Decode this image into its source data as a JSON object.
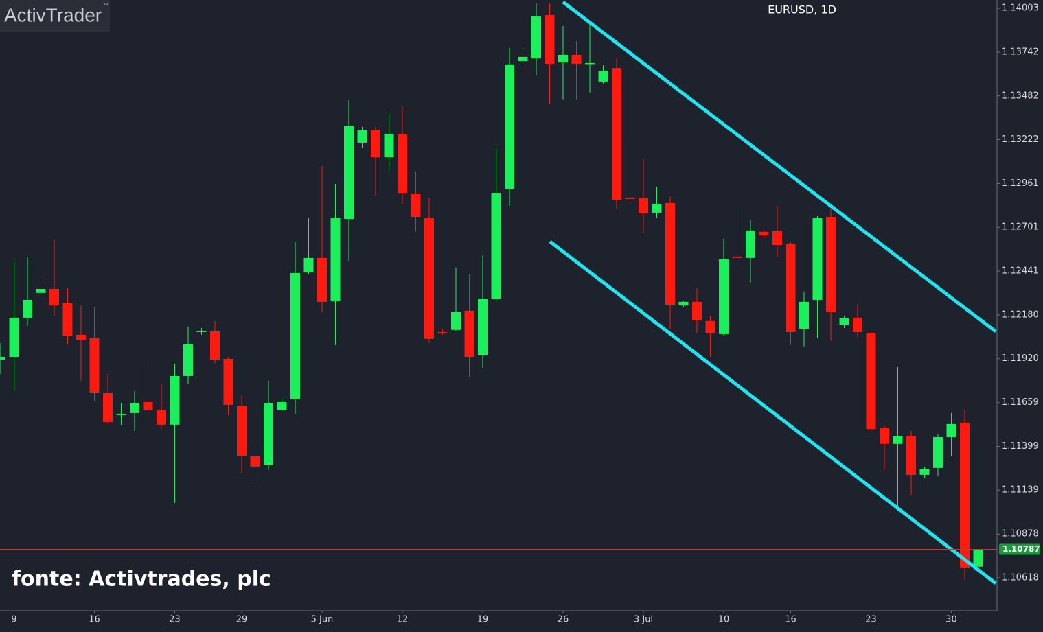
{
  "chart_data": {
    "type": "candlestick",
    "title": "EURUSD, 1D",
    "logo": "ActivTrader",
    "trademark": "™",
    "source": "fonte: Activtrades, plc",
    "last_price": 1.10787,
    "up_color": "#19f05a",
    "down_color": "#ff1a10",
    "grid": false,
    "categories": [
      null,
      "9",
      null,
      null,
      null,
      null,
      null,
      "16",
      null,
      null,
      null,
      null,
      null,
      "23",
      null,
      null,
      null,
      null,
      "29",
      null,
      null,
      null,
      null,
      null,
      "5 Jun",
      null,
      null,
      null,
      null,
      null,
      "12",
      null,
      null,
      null,
      null,
      null,
      "19",
      null,
      null,
      null,
      null,
      null,
      "26",
      null,
      null,
      null,
      null,
      null,
      "3 Jul",
      null,
      null,
      null,
      null,
      null,
      "10",
      null,
      null,
      null,
      null,
      "16",
      null,
      null,
      null,
      null,
      null,
      "23",
      null,
      null,
      null,
      null,
      null,
      "30",
      null,
      null
    ],
    "open": [
      1.11915,
      1.11931,
      1.12164,
      1.12311,
      1.12335,
      1.1225,
      1.12062,
      1.12042,
      1.11715,
      1.11585,
      1.11597,
      1.11662,
      1.11613,
      1.11528,
      1.11817,
      1.12078,
      1.12082,
      1.11919,
      1.11638,
      1.1134,
      1.11287,
      1.11617,
      1.11679,
      1.12433,
      1.12519,
      1.12262,
      1.12751,
      1.13204,
      1.13281,
      1.13118,
      1.13253,
      1.12902,
      1.12755,
      1.12078,
      1.12091,
      1.12205,
      1.1194,
      1.12274,
      1.12927,
      1.13689,
      1.13705,
      1.13962,
      1.13681,
      1.13726,
      1.13673,
      1.13567,
      1.13648,
      1.12878,
      1.12874,
      1.12788,
      1.12845,
      1.12237,
      1.12258,
      1.12144,
      1.12066,
      1.12527,
      1.12519,
      1.12674,
      1.12678,
      1.126,
      1.12095,
      1.1227,
      1.12763,
      1.12119,
      1.12164,
      1.12074,
      1.11507,
      1.11414,
      1.1146,
      1.1123,
      1.11271,
      1.11454,
      1.1154,
      1.10684
    ],
    "high": [
      1.12013,
      1.12502,
      1.12523,
      1.12392,
      1.12625,
      1.12339,
      1.12237,
      1.12225,
      1.1183,
      1.11654,
      1.11728,
      1.1187,
      1.11768,
      1.11891,
      1.12111,
      1.12103,
      1.12144,
      1.11931,
      1.11707,
      1.11401,
      1.11789,
      1.11687,
      1.12617,
      1.12755,
      1.13065,
      1.12959,
      1.13461,
      1.13298,
      1.13298,
      1.13379,
      1.1342,
      1.13033,
      1.12878,
      1.12095,
      1.12462,
      1.12421,
      1.12535,
      1.13175,
      1.13767,
      1.13767,
      1.14032,
      1.14032,
      1.13897,
      1.13807,
      1.1393,
      1.13665,
      1.13705,
      1.13208,
      1.13106,
      1.12943,
      1.12886,
      1.12266,
      1.12339,
      1.12176,
      1.12633,
      1.12845,
      1.12743,
      1.12686,
      1.12829,
      1.12617,
      1.12319,
      1.12767,
      1.12808,
      1.12176,
      1.12245,
      1.12082,
      1.11524,
      1.1187,
      1.11491,
      1.11279,
      1.11475,
      1.11597,
      1.11613,
      1.1079
    ],
    "low": [
      1.1183,
      1.11728,
      1.12115,
      1.12258,
      1.12176,
      1.12005,
      1.11789,
      1.11666,
      1.11532,
      1.11524,
      1.11491,
      1.1141,
      1.11503,
      1.11063,
      1.11768,
      1.12062,
      1.11891,
      1.11585,
      1.11238,
      1.11157,
      1.11259,
      1.11605,
      1.11593,
      1.12421,
      1.12197,
      1.12001,
      1.12502,
      1.13175,
      1.1289,
      1.13033,
      1.12841,
      1.12674,
      1.12013,
      1.12062,
      1.12086,
      1.11809,
      1.11862,
      1.12258,
      1.12829,
      1.13644,
      1.13603,
      1.13432,
      1.13461,
      1.13461,
      1.13502,
      1.13555,
      1.12808,
      1.12747,
      1.12666,
      1.12755,
      1.12095,
      1.12225,
      1.12074,
      1.11931,
      1.12054,
      1.12441,
      1.12372,
      1.12625,
      1.12523,
      1.12001,
      1.11993,
      1.12042,
      1.12025,
      1.12103,
      1.12046,
      1.11495,
      1.11259,
      1.11014,
      1.11108,
      1.1121,
      1.11222,
      1.1134,
      1.10606,
      1.10667
    ],
    "close": [
      1.11931,
      1.12164,
      1.1227,
      1.12335,
      1.12237,
      1.12054,
      1.12033,
      1.11719,
      1.11544,
      1.11593,
      1.11654,
      1.11613,
      1.11528,
      1.11817,
      1.12005,
      1.12086,
      1.11915,
      1.11646,
      1.11344,
      1.11279,
      1.11654,
      1.11662,
      1.12429,
      1.12519,
      1.12258,
      1.12755,
      1.13302,
      1.13281,
      1.13118,
      1.13257,
      1.12906,
      1.12763,
      1.12038,
      1.1207,
      1.12197,
      1.11931,
      1.12274,
      1.12906,
      1.13669,
      1.13714,
      1.13954,
      1.13673,
      1.13726,
      1.13673,
      1.13677,
      1.13632,
      1.12865,
      1.12869,
      1.12784,
      1.12841,
      1.12241,
      1.12258,
      1.12148,
      1.1207,
      1.12511,
      1.12519,
      1.12682,
      1.12653,
      1.12596,
      1.12078,
      1.12258,
      1.12755,
      1.12197,
      1.1216,
      1.12078,
      1.11503,
      1.11414,
      1.11458,
      1.1123,
      1.11263,
      1.11454,
      1.11532,
      1.10675,
      1.10787
    ],
    "ylim": [
      1.10422,
      1.14052
    ],
    "yticks": [
      1.14003,
      1.13742,
      1.13482,
      1.13222,
      1.12961,
      1.12701,
      1.12441,
      {
        "value": 1.1218,
        "label": "1.12180"
      },
      {
        "value": 1.1192,
        "label": "1.11920"
      },
      1.11659,
      1.11399,
      1.11139,
      1.10878,
      1.10618
    ]
  }
}
